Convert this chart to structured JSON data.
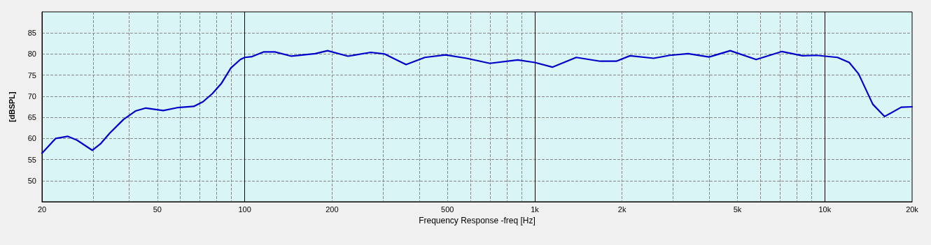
{
  "chart_data": {
    "type": "line",
    "xlabel": "Frequency Response -freq [Hz]",
    "ylabel": "[dBSPL]",
    "log": "x",
    "grid": true,
    "marker": "none",
    "line_style": "solid",
    "xlim": [
      20,
      20000
    ],
    "xticks": [
      20,
      50,
      100,
      200,
      500,
      {
        "value": 1000,
        "label": "1k"
      },
      {
        "value": 2000,
        "label": "2k"
      },
      {
        "value": 5000,
        "label": "5k"
      },
      {
        "value": 10000,
        "label": "10k"
      },
      {
        "value": 20000,
        "label": "20k"
      }
    ],
    "ylim": [
      45,
      90
    ],
    "yticks": [
      50,
      55,
      60,
      65,
      70,
      75,
      80,
      85
    ],
    "series": [
      {
        "color": "#0000cc",
        "x": [
          20,
          22.3,
          24.5,
          26.4,
          29.8,
          31.8,
          34.2,
          38.2,
          42,
          45.6,
          52.4,
          58.6,
          66.7,
          71.8,
          77.3,
          83.2,
          89.6,
          96.6,
          100,
          106,
          116,
          127,
          145,
          175,
          193,
          227,
          272,
          304,
          360,
          418,
          492,
          582,
          700,
          874,
          1000,
          1150,
          1390,
          1680,
          1910,
          2130,
          2570,
          2920,
          3380,
          3990,
          4720,
          5800,
          7120,
          8380,
          9360,
          11060,
          12140,
          13080,
          14640,
          16080,
          18340,
          20000
        ],
        "values": [
          56.5,
          60.0,
          60.5,
          59.6,
          57.2,
          58.7,
          61.2,
          64.5,
          66.5,
          67.2,
          66.6,
          67.3,
          67.6,
          68.7,
          70.6,
          73.1,
          76.7,
          78.7,
          79.2,
          79.4,
          80.5,
          80.5,
          79.5,
          80.1,
          80.8,
          79.5,
          80.4,
          80.0,
          77.5,
          79.2,
          79.8,
          79.0,
          77.8,
          78.6,
          78.0,
          76.9,
          79.2,
          78.3,
          78.3,
          79.6,
          79.0,
          79.7,
          80.1,
          79.3,
          80.8,
          78.7,
          80.6,
          79.6,
          79.7,
          79.2,
          78.0,
          75.3,
          68.1,
          65.2,
          67.4,
          67.5
        ]
      }
    ]
  }
}
